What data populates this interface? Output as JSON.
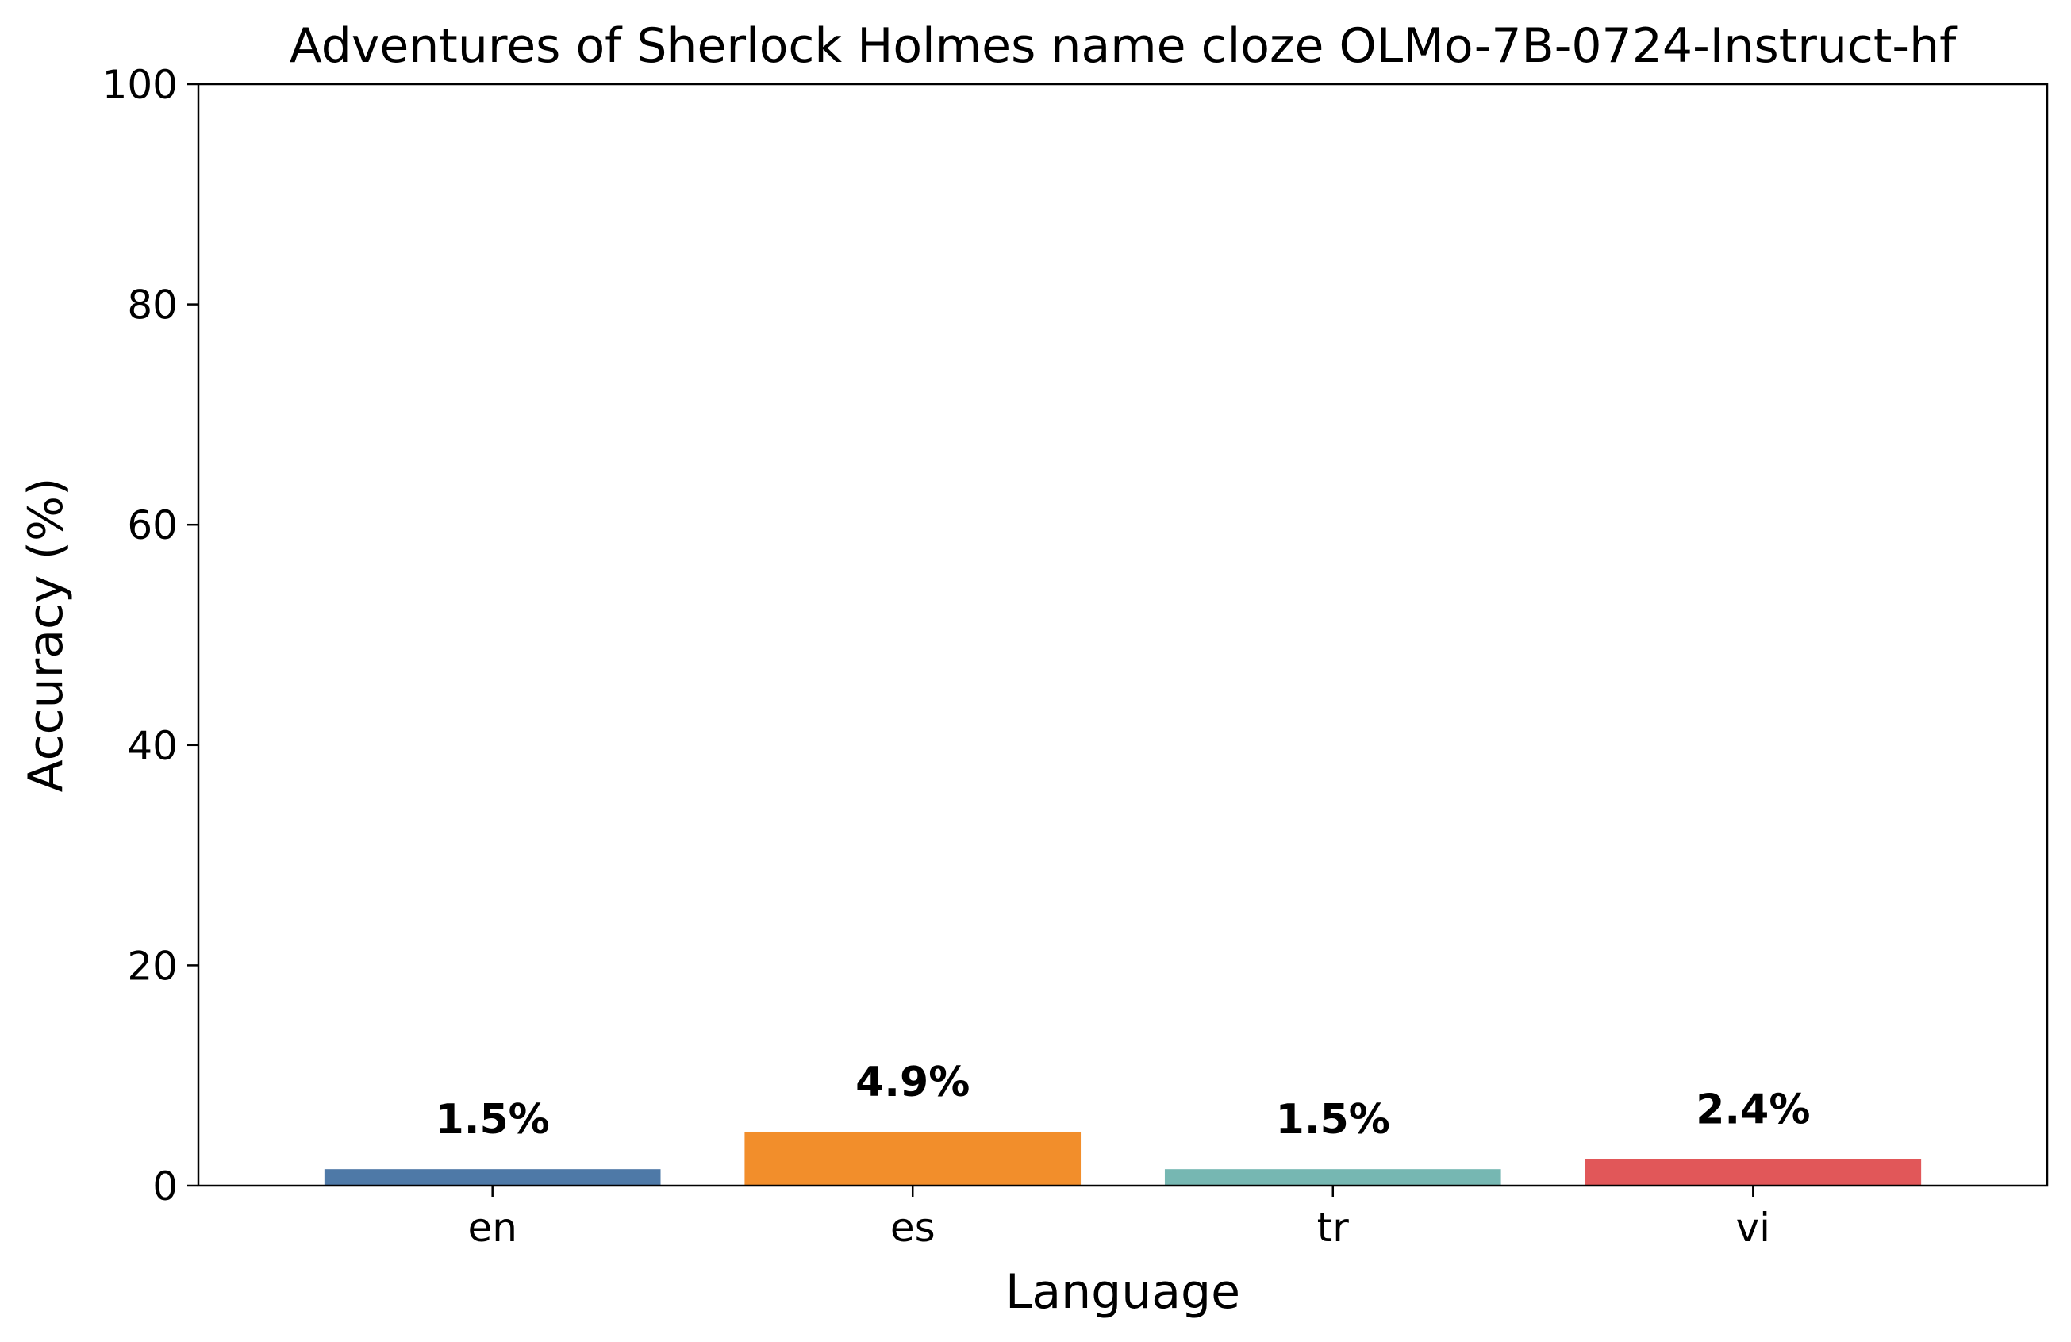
{
  "chart_data": {
    "type": "bar",
    "title": "Adventures of Sherlock Holmes name cloze OLMo-7B-0724-Instruct-hf",
    "xlabel": "Language",
    "ylabel": "Accuracy (%)",
    "categories": [
      "en",
      "es",
      "tr",
      "vi"
    ],
    "values": [
      1.5,
      4.9,
      1.5,
      2.4
    ],
    "value_labels": [
      "1.5%",
      "4.9%",
      "1.5%",
      "2.4%"
    ],
    "colors": [
      "#4e79a7",
      "#f28e2b",
      "#76b7b2",
      "#e15759"
    ],
    "ylim": [
      0,
      100
    ],
    "yticks": [
      0,
      20,
      40,
      60,
      80,
      100
    ],
    "grid": false,
    "legend": "none"
  }
}
